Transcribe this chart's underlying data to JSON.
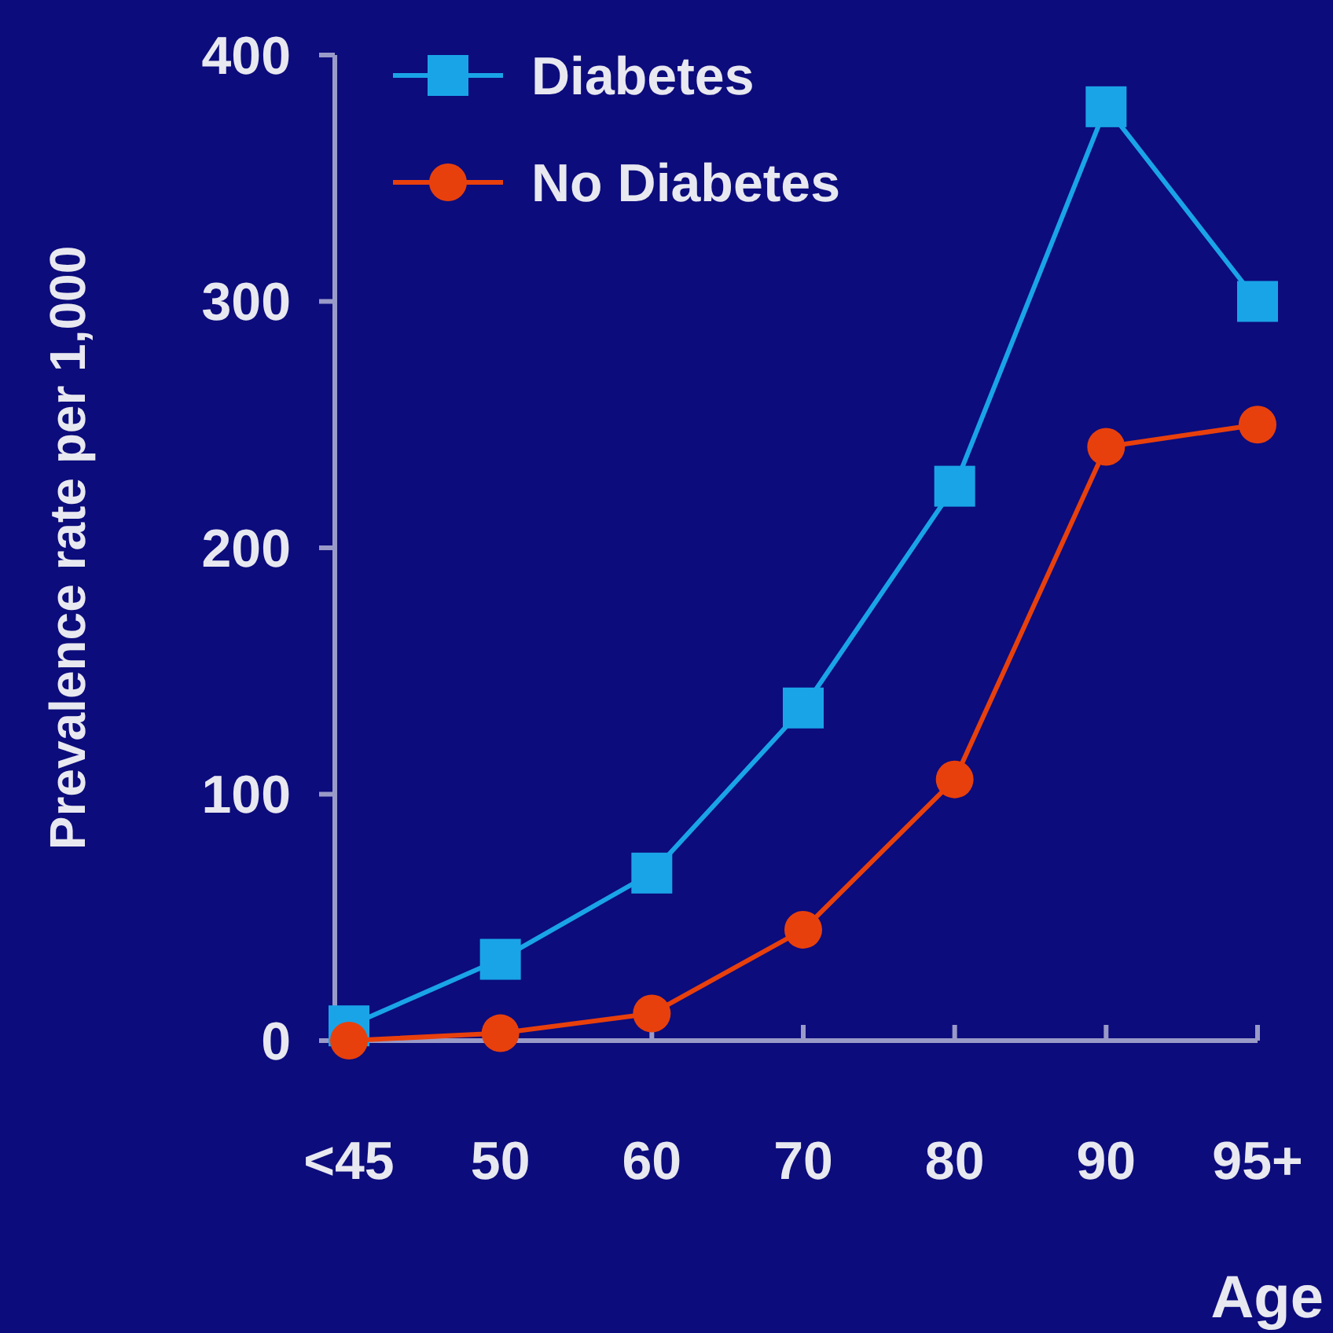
{
  "chart_data": {
    "type": "line",
    "xlabel": "Age",
    "ylabel": "Prevalence rate per 1,000",
    "categories": [
      "<45",
      "50",
      "60",
      "70",
      "80",
      "90",
      "95+"
    ],
    "ylim": [
      0,
      400
    ],
    "yticks": [
      0,
      100,
      200,
      300,
      400
    ],
    "grid": false,
    "legend": "top left",
    "line_style": "solid",
    "series": [
      {
        "name": "Diabetes",
        "color": "#1aa4e8",
        "marker": "square",
        "values": [
          6,
          33,
          68,
          135,
          225,
          379,
          300
        ]
      },
      {
        "name": "No Diabetes",
        "color": "#e8400c",
        "marker": "circle",
        "values": [
          0,
          3,
          11,
          45,
          106,
          241,
          250
        ]
      }
    ]
  }
}
